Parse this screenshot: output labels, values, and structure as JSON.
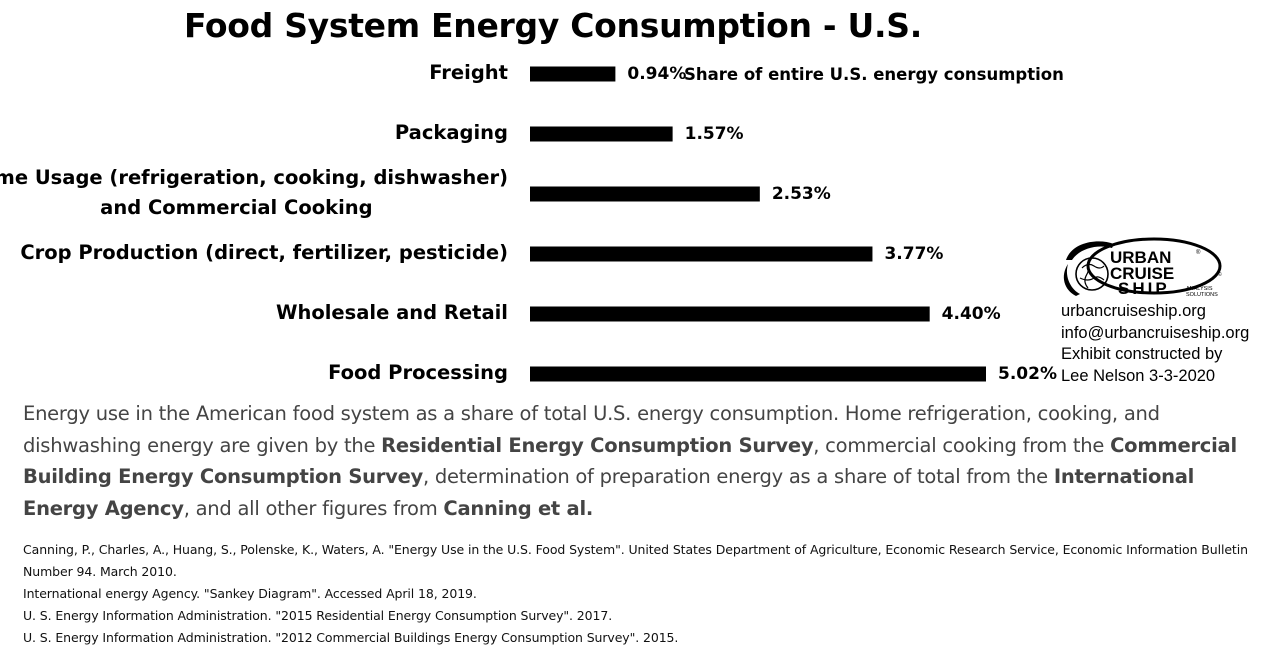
{
  "chart_data": {
    "type": "bar",
    "orientation": "horizontal",
    "title": "Food System Energy Consumption - U.S.",
    "annotation": "Share of entire U.S. energy consumption",
    "categories": [
      [
        "Freight"
      ],
      [
        "Packaging"
      ],
      [
        "Home Usage (refrigeration, cooking, dishwasher)",
        "and Commercial Cooking"
      ],
      [
        "Crop Production (direct, fertilizer, pesticide)"
      ],
      [
        "Wholesale and Retail"
      ],
      [
        "Food Processing"
      ]
    ],
    "values": [
      0.94,
      1.57,
      2.53,
      3.77,
      4.4,
      5.02
    ],
    "value_labels": [
      "0.94%",
      "1.57%",
      "2.53%",
      "3.77%",
      "4.40%",
      "5.02%"
    ],
    "unit": "%",
    "xlim": [
      0,
      5.02
    ],
    "grid": false,
    "bar_color": "#000000"
  },
  "logo": {
    "line1": "URBAN",
    "line2": "CRUISE",
    "line3": "SHIP",
    "sub1": "ANALYSIS",
    "sub2": "SOLUTIONS",
    "registered": "®",
    "copyright": "©"
  },
  "contact": {
    "website": "urbancruiseship.org",
    "email": "info@urbancruiseship.org",
    "credit_line1": "Exhibit constructed by",
    "credit_line2": "Lee Nelson 3-3-2020"
  },
  "description": {
    "t1": "Energy use in the American food system as a share of total U.S. energy consumption. Home refrigeration, cooking, and dishwashing energy are given by the ",
    "b1": "Residential Energy Consumption Survey",
    "t2": ", commercial cooking from the ",
    "b2": "Commercial Building Energy Consumption Survey",
    "t3": ", determination of preparation energy as a share of total from the ",
    "b3": "International Energy Agency",
    "t4": ", and all other figures from ",
    "b4": "Canning et al."
  },
  "references": [
    "Canning, P., Charles, A., Huang, S., Polenske, K., Waters, A. \"Energy Use in the U.S. Food System\". United States Department of Agriculture, Economic Research Service, Economic Information Bulletin Number 94. March 2010.",
    "International energy Agency. \"Sankey Diagram\". Accessed April 18, 2019.",
    "U. S. Energy Information Administration. \"2015 Residential Energy Consumption Survey\". 2017.",
    "U. S. Energy Information Administration. \"2012 Commercial Buildings Energy Consumption Survey\". 2015."
  ],
  "colors": {
    "bars": "#000000",
    "description_text": "#444444",
    "background": "#ffffff"
  }
}
